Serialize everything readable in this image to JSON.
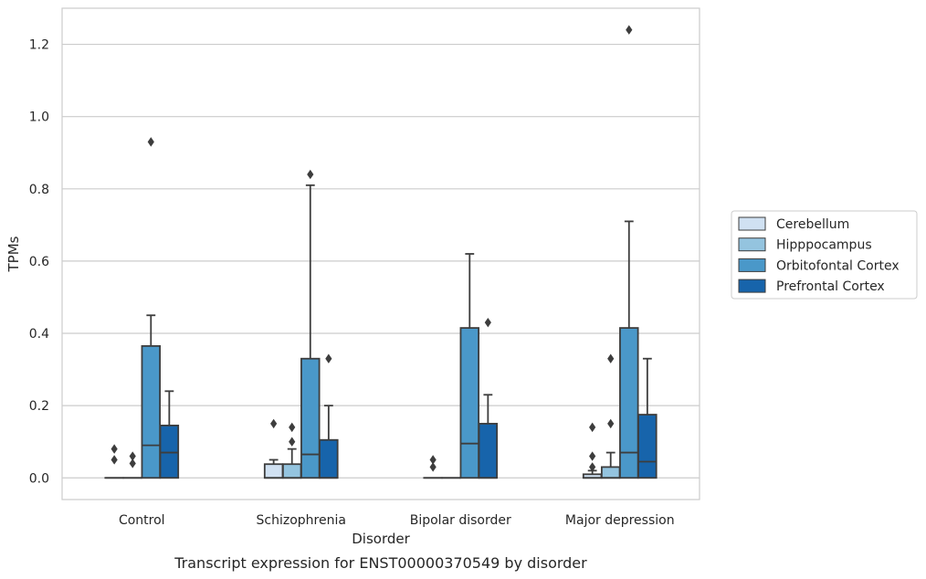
{
  "chart_data": {
    "type": "box",
    "caption": "Transcript expression for ENST00000370549 by disorder",
    "xlabel": "Disorder",
    "ylabel": "TPMs",
    "ylim": [
      -0.06,
      1.3
    ],
    "yticks": [
      "0.0",
      "0.2",
      "0.4",
      "0.6",
      "0.8",
      "1.0",
      "1.2"
    ],
    "categories": [
      "Control",
      "Schizophrenia",
      "Bipolar disorder",
      "Major depression"
    ],
    "grid": "horizontal",
    "legend_position": "right",
    "series": [
      {
        "name": "Cerebellum",
        "color": "#d0e1f2",
        "boxes": [
          {
            "q1": 0,
            "median": 0,
            "q3": 0,
            "whisker_low": 0,
            "whisker_high": 0,
            "outliers": [
              0.08,
              0.05
            ]
          },
          {
            "q1": 0,
            "median": 0,
            "q3": 0.038,
            "whisker_low": 0,
            "whisker_high": 0.05,
            "outliers": [
              0.15
            ]
          },
          {
            "q1": 0,
            "median": 0,
            "q3": 0,
            "whisker_low": 0,
            "whisker_high": 0,
            "outliers": [
              0.05,
              0.03
            ]
          },
          {
            "q1": 0,
            "median": 0,
            "q3": 0.01,
            "whisker_low": 0,
            "whisker_high": 0.02,
            "outliers": [
              0.14,
              0.06,
              0.03
            ]
          }
        ]
      },
      {
        "name": "Hipppocampus",
        "color": "#94c4df",
        "boxes": [
          {
            "q1": 0,
            "median": 0,
            "q3": 0,
            "whisker_low": 0,
            "whisker_high": 0,
            "outliers": [
              0.06,
              0.04
            ]
          },
          {
            "q1": 0,
            "median": 0,
            "q3": 0.038,
            "whisker_low": 0,
            "whisker_high": 0.08,
            "outliers": [
              0.14,
              0.1
            ]
          },
          {
            "q1": 0,
            "median": 0,
            "q3": 0,
            "whisker_low": 0,
            "whisker_high": 0,
            "outliers": []
          },
          {
            "q1": 0,
            "median": 0,
            "q3": 0.03,
            "whisker_low": 0,
            "whisker_high": 0.07,
            "outliers": [
              0.33,
              0.15
            ]
          }
        ]
      },
      {
        "name": "Orbitofontal Cortex",
        "color": "#4a98c9",
        "boxes": [
          {
            "q1": 0,
            "median": 0.09,
            "q3": 0.365,
            "whisker_low": 0,
            "whisker_high": 0.45,
            "outliers": [
              0.93
            ]
          },
          {
            "q1": 0,
            "median": 0.065,
            "q3": 0.33,
            "whisker_low": 0,
            "whisker_high": 0.81,
            "outliers": [
              0.84
            ]
          },
          {
            "q1": 0,
            "median": 0.095,
            "q3": 0.415,
            "whisker_low": 0,
            "whisker_high": 0.62,
            "outliers": []
          },
          {
            "q1": 0,
            "median": 0.07,
            "q3": 0.415,
            "whisker_low": 0,
            "whisker_high": 0.71,
            "outliers": [
              1.24
            ]
          }
        ]
      },
      {
        "name": "Prefrontal Cortex",
        "color": "#1764ab",
        "boxes": [
          {
            "q1": 0,
            "median": 0.07,
            "q3": 0.145,
            "whisker_low": 0,
            "whisker_high": 0.24,
            "outliers": []
          },
          {
            "q1": 0,
            "median": 0,
            "q3": 0.105,
            "whisker_low": 0,
            "whisker_high": 0.2,
            "outliers": [
              0.33
            ]
          },
          {
            "q1": 0,
            "median": 0,
            "q3": 0.15,
            "whisker_low": 0,
            "whisker_high": 0.23,
            "outliers": [
              0.43
            ]
          },
          {
            "q1": 0,
            "median": 0.045,
            "q3": 0.175,
            "whisker_low": 0,
            "whisker_high": 0.33,
            "outliers": []
          }
        ]
      }
    ]
  }
}
